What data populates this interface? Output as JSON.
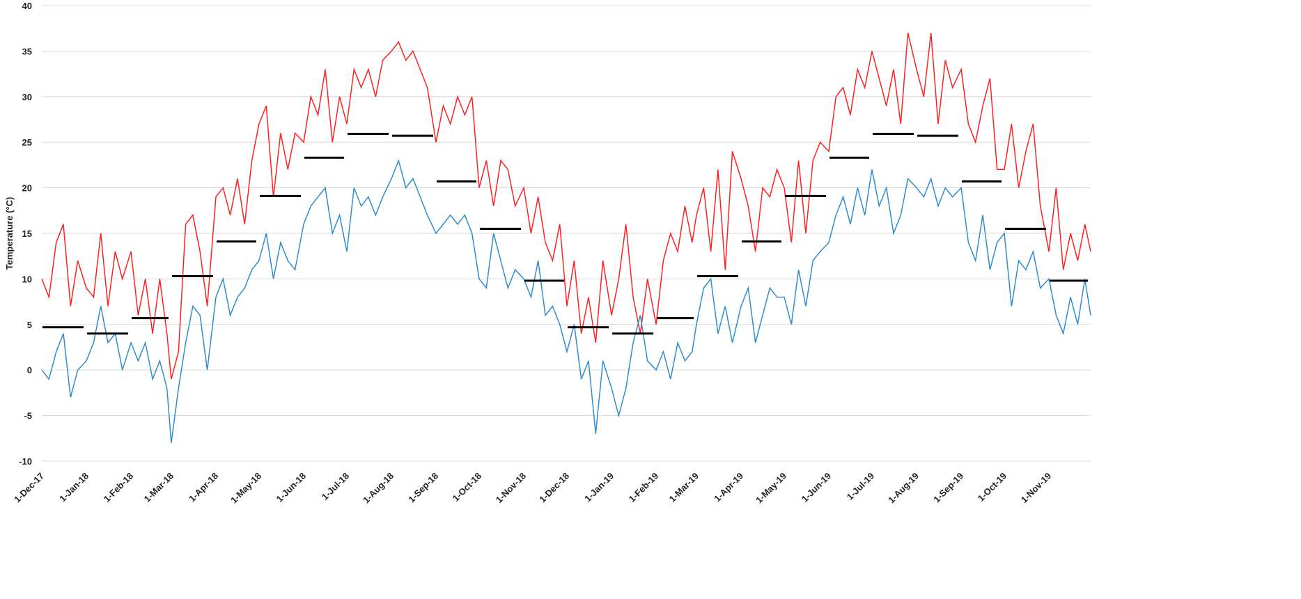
{
  "chart_data": {
    "type": "line",
    "y_label": "Temperature (°C)",
    "x": [
      "1-Dec-17",
      "6-Dec-17",
      "11-Dec-17",
      "16-Dec-17",
      "21-Dec-17",
      "26-Dec-17",
      "1-Jan-18",
      "6-Jan-18",
      "11-Jan-18",
      "16-Jan-18",
      "21-Jan-18",
      "26-Jan-18",
      "1-Feb-18",
      "6-Feb-18",
      "11-Feb-18",
      "16-Feb-18",
      "21-Feb-18",
      "26-Feb-18",
      "1-Mar-18",
      "6-Mar-18",
      "11-Mar-18",
      "16-Mar-18",
      "21-Mar-18",
      "26-Mar-18",
      "1-Apr-18",
      "6-Apr-18",
      "11-Apr-18",
      "16-Apr-18",
      "21-Apr-18",
      "26-Apr-18",
      "1-May-18",
      "6-May-18",
      "11-May-18",
      "16-May-18",
      "21-May-18",
      "26-May-18",
      "1-Jun-18",
      "6-Jun-18",
      "11-Jun-18",
      "16-Jun-18",
      "21-Jun-18",
      "26-Jun-18",
      "1-Jul-18",
      "6-Jul-18",
      "11-Jul-18",
      "16-Jul-18",
      "21-Jul-18",
      "26-Jul-18",
      "1-Aug-18",
      "6-Aug-18",
      "11-Aug-18",
      "16-Aug-18",
      "21-Aug-18",
      "26-Aug-18",
      "1-Sep-18",
      "6-Sep-18",
      "11-Sep-18",
      "16-Sep-18",
      "21-Sep-18",
      "26-Sep-18",
      "1-Oct-18",
      "6-Oct-18",
      "11-Oct-18",
      "16-Oct-18",
      "21-Oct-18",
      "26-Oct-18",
      "1-Nov-18",
      "6-Nov-18",
      "11-Nov-18",
      "16-Nov-18",
      "21-Nov-18",
      "26-Nov-18",
      "1-Dec-18",
      "6-Dec-18",
      "11-Dec-18",
      "16-Dec-18",
      "21-Dec-18",
      "26-Dec-18",
      "1-Jan-19",
      "6-Jan-19",
      "11-Jan-19",
      "16-Jan-19",
      "21-Jan-19",
      "26-Jan-19",
      "1-Feb-19",
      "6-Feb-19",
      "11-Feb-19",
      "16-Feb-19",
      "21-Feb-19",
      "26-Feb-19",
      "1-Mar-19",
      "6-Mar-19",
      "11-Mar-19",
      "16-Mar-19",
      "21-Mar-19",
      "26-Mar-19",
      "1-Apr-19",
      "6-Apr-19",
      "11-Apr-19",
      "16-Apr-19",
      "21-Apr-19",
      "26-Apr-19",
      "1-May-19",
      "6-May-19",
      "11-May-19",
      "16-May-19",
      "21-May-19",
      "26-May-19",
      "1-Jun-19",
      "6-Jun-19",
      "11-Jun-19",
      "16-Jun-19",
      "21-Jun-19",
      "26-Jun-19",
      "1-Jul-19",
      "6-Jul-19",
      "11-Jul-19",
      "16-Jul-19",
      "21-Jul-19",
      "26-Jul-19",
      "1-Aug-19",
      "6-Aug-19",
      "11-Aug-19",
      "16-Aug-19",
      "21-Aug-19",
      "26-Aug-19",
      "1-Sep-19",
      "6-Sep-19",
      "11-Sep-19",
      "16-Sep-19",
      "21-Sep-19",
      "26-Sep-19",
      "1-Oct-19",
      "6-Oct-19",
      "11-Oct-19",
      "16-Oct-19",
      "21-Oct-19",
      "26-Oct-19",
      "1-Nov-19",
      "6-Nov-19",
      "11-Nov-19",
      "16-Nov-19",
      "21-Nov-19",
      "26-Nov-19",
      "30-Nov-19"
    ],
    "series": [
      {
        "color": "#ff2020",
        "values": [
          10,
          8,
          14,
          16,
          7,
          12,
          9,
          8,
          15,
          7,
          13,
          10,
          13,
          6,
          10,
          4,
          10,
          4,
          -1,
          2,
          16,
          17,
          13,
          7,
          19,
          20,
          17,
          21,
          16,
          23,
          27,
          29,
          19,
          26,
          22,
          26,
          25,
          30,
          28,
          33,
          25,
          30,
          27,
          33,
          31,
          33,
          30,
          34,
          35,
          36,
          34,
          35,
          33,
          31,
          25,
          29,
          27,
          30,
          28,
          30,
          20,
          23,
          18,
          23,
          22,
          18,
          20,
          15,
          19,
          14,
          12,
          16,
          7,
          12,
          4,
          8,
          3,
          12,
          6,
          10,
          16,
          8,
          4,
          10,
          5,
          12,
          15,
          13,
          18,
          14,
          17,
          20,
          13,
          22,
          11,
          24,
          21,
          18,
          13,
          20,
          19,
          22,
          20,
          14,
          23,
          15,
          23,
          25,
          24,
          30,
          31,
          28,
          33,
          31,
          35,
          32,
          29,
          33,
          27,
          37,
          33,
          30,
          37,
          27,
          34,
          31,
          33,
          27,
          25,
          29,
          32,
          22,
          22,
          27,
          20,
          24,
          27,
          18,
          13,
          20,
          11,
          15,
          12,
          16,
          13
        ]
      },
      {
        "color": "#2e8ccf",
        "values": [
          0,
          -1,
          2,
          4,
          -3,
          0,
          1,
          3,
          7,
          3,
          4,
          0,
          3,
          1,
          3,
          -1,
          1,
          -2,
          -8,
          -2,
          3,
          7,
          6,
          0,
          8,
          10,
          6,
          8,
          9,
          11,
          12,
          15,
          10,
          14,
          12,
          11,
          16,
          18,
          19,
          20,
          15,
          17,
          13,
          20,
          18,
          19,
          17,
          19,
          21,
          23,
          20,
          21,
          19,
          17,
          15,
          16,
          17,
          16,
          17,
          15,
          10,
          9,
          15,
          12,
          9,
          11,
          10,
          8,
          12,
          6,
          7,
          5,
          2,
          5,
          -1,
          1,
          -7,
          1,
          -2,
          -5,
          -2,
          3,
          6,
          1,
          0,
          2,
          -1,
          3,
          1,
          2,
          5,
          9,
          10,
          4,
          7,
          3,
          7,
          9,
          3,
          6,
          9,
          8,
          8,
          5,
          11,
          7,
          12,
          13,
          14,
          17,
          19,
          16,
          20,
          17,
          22,
          18,
          20,
          15,
          17,
          21,
          20,
          19,
          21,
          18,
          20,
          19,
          20,
          14,
          12,
          17,
          11,
          14,
          15,
          7,
          12,
          11,
          13,
          9,
          10,
          6,
          4,
          8,
          5,
          10,
          6
        ]
      }
    ],
    "xticks": [
      "1-Dec-17",
      "1-Jan-18",
      "1-Feb-18",
      "1-Mar-18",
      "1-Apr-18",
      "1-May-18",
      "1-Jun-18",
      "1-Jul-18",
      "1-Aug-18",
      "1-Sep-18",
      "1-Oct-18",
      "1-Nov-18",
      "1-Dec-18",
      "1-Jan-19",
      "1-Feb-19",
      "1-Mar-19",
      "1-Apr-19",
      "1-May-19",
      "1-Jun-19",
      "1-Jul-19",
      "1-Aug-19",
      "1-Sep-19",
      "1-Oct-19",
      "1-Nov-19"
    ],
    "xlim": [
      "1-Dec-17",
      "30-Nov-19"
    ],
    "monthly_means": {
      "color": "#000000",
      "values": [
        4.7,
        4.0,
        5.7,
        10.3,
        14.1,
        19.1,
        23.3,
        25.9,
        25.7,
        20.7,
        15.5,
        9.8,
        4.7,
        4.0,
        5.7,
        10.3,
        14.1,
        19.1,
        23.3,
        25.9,
        25.7,
        20.7,
        15.5,
        9.8
      ]
    },
    "ylim": [
      -10,
      40
    ],
    "yticks": [
      -10,
      -5,
      0,
      5,
      10,
      15,
      20,
      25,
      30,
      35,
      40
    ],
    "grid": true
  }
}
